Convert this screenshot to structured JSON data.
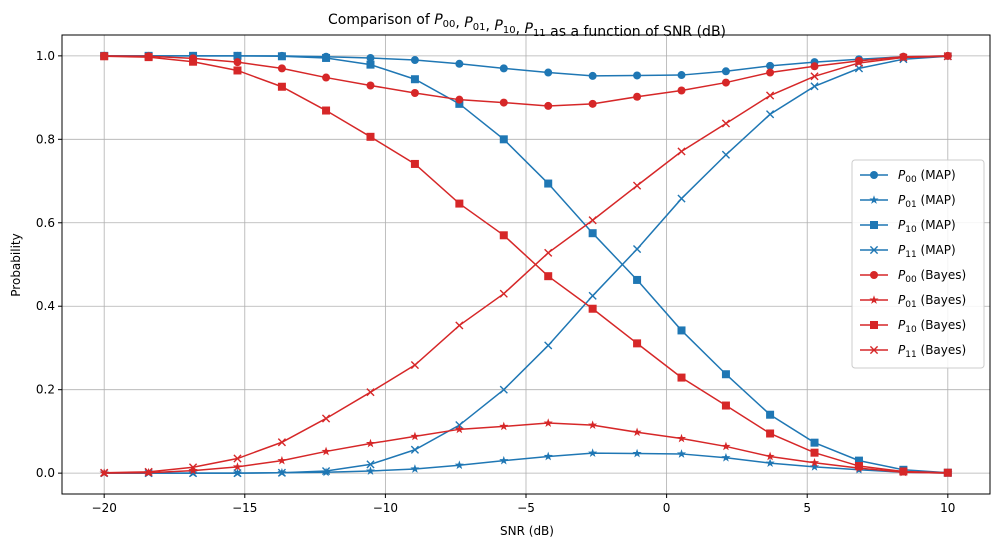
{
  "chart_data": {
    "type": "line",
    "title_parts": [
      {
        "t": "Comparison of "
      },
      {
        "t": "P",
        "italic": true
      },
      {
        "t": "00",
        "sub": true
      },
      {
        "t": ", "
      },
      {
        "t": "P",
        "italic": true
      },
      {
        "t": "01",
        "sub": true
      },
      {
        "t": ", "
      },
      {
        "t": "P",
        "italic": true
      },
      {
        "t": "10",
        "sub": true
      },
      {
        "t": ", "
      },
      {
        "t": "P",
        "italic": true
      },
      {
        "t": "11",
        "sub": true
      },
      {
        "t": " as a function of SNR (dB)"
      }
    ],
    "xlabel": "SNR (dB)",
    "ylabel": "Probability",
    "xlim": [
      -21.5,
      11.5
    ],
    "ylim": [
      -0.05,
      1.05
    ],
    "xticks": [
      -20,
      -15,
      -10,
      -5,
      0,
      5,
      10
    ],
    "yticks": [
      0.0,
      0.2,
      0.4,
      0.6,
      0.8,
      1.0
    ],
    "xtick_labels": [
      "−20",
      "−15",
      "−10",
      "−5",
      "0",
      "5",
      "10"
    ],
    "ytick_labels": [
      "0.0",
      "0.2",
      "0.4",
      "0.6",
      "0.8",
      "1.0"
    ],
    "grid": true,
    "legend_position": "center-right",
    "colors": {
      "MAP": "#1f77b4",
      "Bayes": "#d62728"
    },
    "x": [
      -20,
      -18.42,
      -16.84,
      -15.26,
      -13.68,
      -12.11,
      -10.53,
      -8.95,
      -7.37,
      -5.79,
      -4.21,
      -2.63,
      -1.05,
      0.53,
      2.11,
      3.68,
      5.26,
      6.84,
      8.42,
      10
    ],
    "series": [
      {
        "name_base": "P",
        "name_sub": "00",
        "name_suffix": " (MAP)",
        "marker": "circle",
        "color": "#1f77b4",
        "values": [
          1.0,
          1.0,
          1.0,
          1.0,
          1.0,
          0.998,
          0.995,
          0.99,
          0.981,
          0.97,
          0.96,
          0.952,
          0.953,
          0.954,
          0.963,
          0.976,
          0.985,
          0.992,
          0.998,
          1.0
        ]
      },
      {
        "name_base": "P",
        "name_sub": "01",
        "name_suffix": " (MAP)",
        "marker": "star",
        "color": "#1f77b4",
        "values": [
          0.0,
          0.0,
          0.0,
          0.0,
          0.001,
          0.002,
          0.005,
          0.01,
          0.019,
          0.03,
          0.04,
          0.048,
          0.047,
          0.046,
          0.037,
          0.024,
          0.015,
          0.008,
          0.002,
          0.0
        ]
      },
      {
        "name_base": "P",
        "name_sub": "10",
        "name_suffix": " (MAP)",
        "marker": "square",
        "color": "#1f77b4",
        "values": [
          1.0,
          1.0,
          1.0,
          1.0,
          0.999,
          0.995,
          0.979,
          0.944,
          0.885,
          0.8,
          0.694,
          0.575,
          0.463,
          0.342,
          0.237,
          0.14,
          0.073,
          0.03,
          0.008,
          0.001
        ]
      },
      {
        "name_base": "P",
        "name_sub": "11",
        "name_suffix": " (MAP)",
        "marker": "x",
        "color": "#1f77b4",
        "values": [
          0.0,
          0.0,
          0.0,
          0.0,
          0.001,
          0.005,
          0.021,
          0.056,
          0.115,
          0.2,
          0.306,
          0.425,
          0.537,
          0.658,
          0.763,
          0.86,
          0.927,
          0.97,
          0.992,
          0.999
        ]
      },
      {
        "name_base": "P",
        "name_sub": "00",
        "name_suffix": " (Bayes)",
        "marker": "circle",
        "color": "#d62728",
        "values": [
          1.0,
          0.999,
          0.994,
          0.985,
          0.97,
          0.948,
          0.929,
          0.911,
          0.895,
          0.888,
          0.88,
          0.885,
          0.902,
          0.917,
          0.936,
          0.96,
          0.975,
          0.988,
          0.998,
          1.0
        ]
      },
      {
        "name_base": "P",
        "name_sub": "01",
        "name_suffix": " (Bayes)",
        "marker": "star",
        "color": "#d62728",
        "values": [
          0.0,
          0.001,
          0.006,
          0.015,
          0.03,
          0.052,
          0.071,
          0.088,
          0.105,
          0.112,
          0.12,
          0.115,
          0.098,
          0.083,
          0.064,
          0.04,
          0.025,
          0.012,
          0.002,
          0.0
        ]
      },
      {
        "name_base": "P",
        "name_sub": "10",
        "name_suffix": " (Bayes)",
        "marker": "square",
        "color": "#d62728",
        "values": [
          0.999,
          0.997,
          0.986,
          0.965,
          0.926,
          0.869,
          0.806,
          0.741,
          0.646,
          0.57,
          0.472,
          0.394,
          0.311,
          0.229,
          0.162,
          0.095,
          0.049,
          0.017,
          0.004,
          0.001
        ]
      },
      {
        "name_base": "P",
        "name_sub": "11",
        "name_suffix": " (Bayes)",
        "marker": "x",
        "color": "#d62728",
        "values": [
          0.001,
          0.003,
          0.014,
          0.035,
          0.074,
          0.131,
          0.194,
          0.259,
          0.354,
          0.43,
          0.528,
          0.606,
          0.689,
          0.771,
          0.838,
          0.905,
          0.951,
          0.983,
          0.996,
          0.999
        ]
      }
    ]
  }
}
